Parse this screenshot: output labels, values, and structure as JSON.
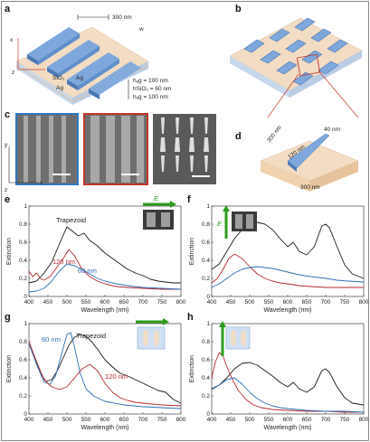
{
  "labels": {
    "a": "a",
    "b": "b",
    "c": "c",
    "d": "d",
    "e": "e",
    "f": "f",
    "g": "g",
    "h": "h"
  },
  "panel_a": {
    "period": "300 nm",
    "w": "w",
    "sio2": "SiO₂",
    "ag_top": "Ag",
    "ag_bottom": "Ag",
    "z": "z",
    "x": "x",
    "layers": [
      "hₐg = 100 nm",
      "hSiO₂ = 60 nm",
      "hₐg = 100 nm"
    ]
  },
  "panel_c": {
    "y": "y",
    "x": "x",
    "z": "z"
  },
  "panel_d": {
    "d300a": "300 nm",
    "d40": "40 nm",
    "d120": "120 nm",
    "d300b": "300 nm"
  },
  "chart_data": [
    {
      "panel": "e",
      "type": "line",
      "xlabel": "Wavelength (nm)",
      "ylabel": "Extinction",
      "xlim": [
        400,
        800
      ],
      "ylim": [
        0,
        1.0
      ],
      "xticks": [
        400,
        450,
        500,
        550,
        600,
        650,
        700,
        750,
        800
      ],
      "yticks": [
        0,
        0.2,
        0.4,
        0.6,
        0.8,
        1.0
      ],
      "field_label": "E",
      "series": [
        {
          "name": "Trapezoid",
          "color": "#1a1a1a",
          "x": [
            400,
            420,
            440,
            460,
            480,
            500,
            515,
            530,
            545,
            560,
            580,
            600,
            620,
            640,
            660,
            680,
            700,
            720,
            740,
            760,
            780,
            800
          ],
          "y": [
            0.15,
            0.17,
            0.26,
            0.38,
            0.58,
            0.77,
            0.72,
            0.67,
            0.7,
            0.62,
            0.56,
            0.48,
            0.42,
            0.36,
            0.3,
            0.26,
            0.23,
            0.19,
            0.17,
            0.16,
            0.15,
            0.15
          ]
        },
        {
          "name": "120 nm",
          "color": "#b52a30",
          "x": [
            400,
            410,
            420,
            430,
            440,
            455,
            470,
            490,
            505,
            520,
            540,
            560,
            580,
            600,
            630,
            660,
            700,
            750,
            800
          ],
          "y": [
            0.28,
            0.22,
            0.26,
            0.2,
            0.18,
            0.22,
            0.3,
            0.42,
            0.52,
            0.45,
            0.3,
            0.22,
            0.17,
            0.14,
            0.11,
            0.1,
            0.09,
            0.08,
            0.08
          ]
        },
        {
          "name": "60 nm",
          "color": "#2e6eb5",
          "x": [
            400,
            420,
            440,
            460,
            480,
            500,
            520,
            540,
            560,
            580,
            600,
            630,
            660,
            700,
            750,
            800
          ],
          "y": [
            0.05,
            0.06,
            0.09,
            0.17,
            0.28,
            0.36,
            0.34,
            0.3,
            0.25,
            0.2,
            0.17,
            0.14,
            0.12,
            0.1,
            0.09,
            0.08
          ]
        }
      ],
      "annotations": [
        {
          "text": "Trapezoid",
          "color": "#1a1a1a"
        },
        {
          "text": "120 nm",
          "color": "#b52a30"
        },
        {
          "text": "60 nm",
          "color": "#2e6eb5"
        }
      ]
    },
    {
      "panel": "f",
      "type": "line",
      "xlabel": "Wavelength (nm)",
      "ylabel": "Extinction",
      "xlim": [
        400,
        800
      ],
      "ylim": [
        0,
        1.0
      ],
      "xticks": [
        400,
        450,
        500,
        550,
        600,
        650,
        700,
        750,
        800
      ],
      "yticks": [
        0,
        0.2,
        0.4,
        0.6,
        0.8,
        1.0
      ],
      "field_label": "E",
      "series": [
        {
          "name": "Trapezoid",
          "color": "#1a1a1a",
          "x": [
            400,
            420,
            440,
            460,
            480,
            500,
            520,
            540,
            560,
            580,
            600,
            615,
            630,
            650,
            670,
            690,
            700,
            710,
            730,
            750,
            770,
            800
          ],
          "y": [
            0.3,
            0.36,
            0.5,
            0.64,
            0.74,
            0.8,
            0.82,
            0.8,
            0.74,
            0.64,
            0.55,
            0.6,
            0.5,
            0.46,
            0.55,
            0.78,
            0.8,
            0.76,
            0.55,
            0.35,
            0.25,
            0.2
          ]
        },
        {
          "name": "120 nm",
          "color": "#b52a30",
          "x": [
            400,
            415,
            430,
            445,
            460,
            480,
            500,
            520,
            540,
            560,
            580,
            600,
            630,
            660,
            700,
            750,
            800
          ],
          "y": [
            0.15,
            0.2,
            0.3,
            0.42,
            0.47,
            0.42,
            0.33,
            0.25,
            0.2,
            0.17,
            0.15,
            0.14,
            0.12,
            0.11,
            0.1,
            0.1,
            0.1
          ]
        },
        {
          "name": "60 nm",
          "color": "#2e6eb5",
          "x": [
            400,
            420,
            440,
            460,
            480,
            500,
            520,
            540,
            560,
            580,
            600,
            630,
            660,
            700,
            730,
            760,
            800
          ],
          "y": [
            0.1,
            0.14,
            0.2,
            0.26,
            0.3,
            0.32,
            0.33,
            0.32,
            0.31,
            0.29,
            0.27,
            0.24,
            0.22,
            0.2,
            0.18,
            0.17,
            0.16
          ]
        }
      ]
    },
    {
      "panel": "g",
      "type": "line",
      "xlabel": "Wavelength (nm)",
      "ylabel": "Extinction",
      "xlim": [
        400,
        800
      ],
      "ylim": [
        0,
        1.0
      ],
      "xticks": [
        400,
        450,
        500,
        550,
        600,
        650,
        700,
        750,
        800
      ],
      "yticks": [
        0,
        0.2,
        0.4,
        0.6,
        0.8,
        1.0
      ],
      "series": [
        {
          "name": "Trapezoid",
          "color": "#1a1a1a",
          "x": [
            400,
            415,
            430,
            445,
            460,
            475,
            490,
            505,
            520,
            535,
            550,
            565,
            580,
            600,
            620,
            640,
            660,
            680,
            700,
            720,
            740,
            760,
            780,
            800
          ],
          "y": [
            0.78,
            0.62,
            0.45,
            0.36,
            0.38,
            0.48,
            0.62,
            0.76,
            0.85,
            0.88,
            0.86,
            0.8,
            0.72,
            0.6,
            0.52,
            0.45,
            0.42,
            0.38,
            0.34,
            0.3,
            0.26,
            0.24,
            0.16,
            0.12
          ]
        },
        {
          "name": "60 nm",
          "color": "#2e6eb5",
          "x": [
            400,
            420,
            440,
            455,
            470,
            485,
            500,
            510,
            520,
            535,
            550,
            570,
            600,
            650,
            700,
            750,
            800
          ],
          "y": [
            0.78,
            0.55,
            0.35,
            0.33,
            0.42,
            0.65,
            0.88,
            0.9,
            0.74,
            0.45,
            0.28,
            0.2,
            0.14,
            0.1,
            0.08,
            0.07,
            0.06
          ]
        },
        {
          "name": "120 nm",
          "color": "#b52a30",
          "x": [
            400,
            420,
            440,
            460,
            480,
            500,
            520,
            540,
            560,
            580,
            600,
            620,
            640,
            660,
            680,
            700,
            750,
            800
          ],
          "y": [
            0.8,
            0.58,
            0.38,
            0.3,
            0.27,
            0.3,
            0.4,
            0.5,
            0.55,
            0.48,
            0.34,
            0.24,
            0.18,
            0.15,
            0.13,
            0.12,
            0.1,
            0.09
          ]
        }
      ],
      "annotations": [
        {
          "text": "60 nm",
          "color": "#2e6eb5"
        },
        {
          "text": "Trapezoid",
          "color": "#1a1a1a"
        },
        {
          "text": "120 nm",
          "color": "#b52a30"
        }
      ]
    },
    {
      "panel": "h",
      "type": "line",
      "xlabel": "Wavelength (nm)",
      "ylabel": "Extinction",
      "xlim": [
        400,
        800
      ],
      "ylim": [
        0,
        1.0
      ],
      "xticks": [
        400,
        450,
        500,
        550,
        600,
        650,
        700,
        750,
        800
      ],
      "yticks": [
        0,
        0.2,
        0.4,
        0.6,
        0.8,
        1.0
      ],
      "series": [
        {
          "name": "Trapezoid",
          "color": "#1a1a1a",
          "x": [
            400,
            420,
            440,
            460,
            480,
            500,
            520,
            540,
            560,
            580,
            600,
            615,
            630,
            650,
            670,
            690,
            700,
            710,
            730,
            750,
            770,
            800
          ],
          "y": [
            0.28,
            0.32,
            0.4,
            0.5,
            0.56,
            0.57,
            0.54,
            0.48,
            0.42,
            0.35,
            0.3,
            0.35,
            0.28,
            0.24,
            0.3,
            0.48,
            0.5,
            0.46,
            0.3,
            0.18,
            0.12,
            0.1
          ]
        },
        {
          "name": "120 nm",
          "color": "#b52a30",
          "x": [
            400,
            410,
            420,
            430,
            440,
            455,
            470,
            490,
            510,
            530,
            560,
            600,
            650,
            700,
            750,
            800
          ],
          "y": [
            0.4,
            0.58,
            0.68,
            0.64,
            0.52,
            0.38,
            0.26,
            0.16,
            0.1,
            0.07,
            0.05,
            0.04,
            0.03,
            0.03,
            0.02,
            0.02
          ]
        },
        {
          "name": "60 nm",
          "color": "#2e6eb5",
          "x": [
            400,
            420,
            440,
            460,
            480,
            500,
            520,
            540,
            560,
            580,
            600,
            650,
            700,
            750,
            800
          ],
          "y": [
            0.27,
            0.32,
            0.38,
            0.4,
            0.33,
            0.24,
            0.17,
            0.12,
            0.09,
            0.07,
            0.06,
            0.04,
            0.03,
            0.03,
            0.02
          ]
        }
      ]
    }
  ],
  "colors": {
    "bar_blue": "#7fa7d8",
    "substrate": "#f0d9bf",
    "ag_layer": "#c9d8ea",
    "red_frame": "#c0392b",
    "blue_frame": "#2e78c2",
    "arrow_green": "#2c9b1e"
  }
}
